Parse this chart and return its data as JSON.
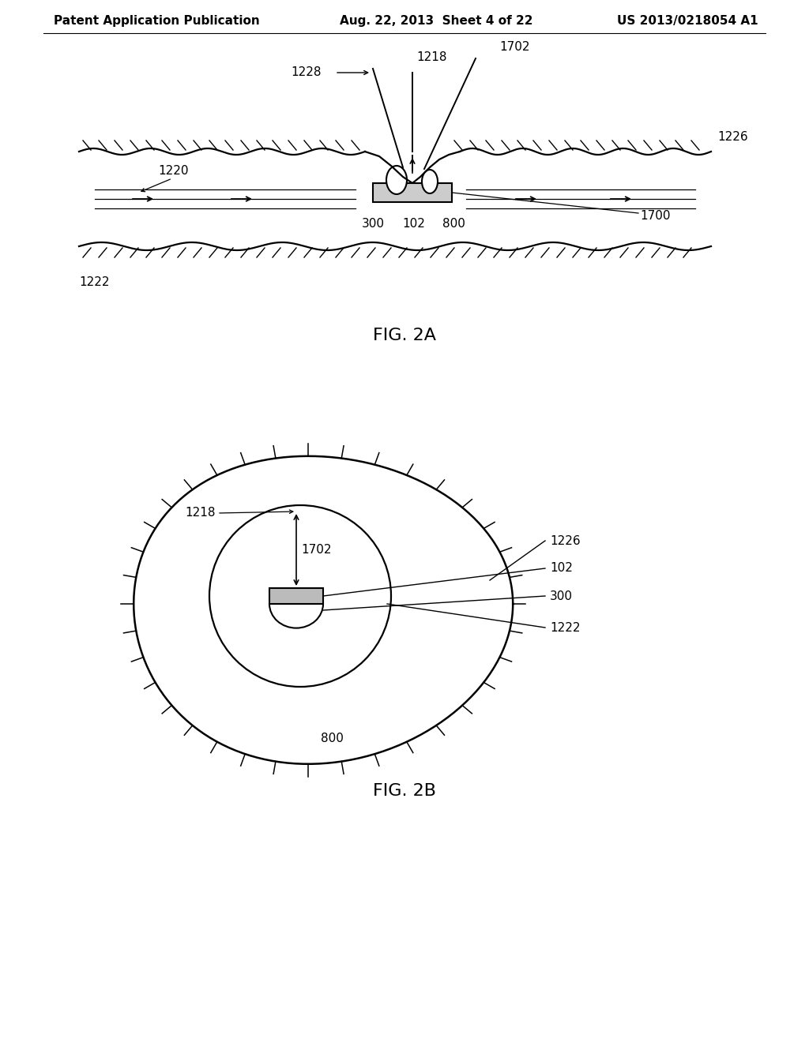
{
  "header_left": "Patent Application Publication",
  "header_mid": "Aug. 22, 2013  Sheet 4 of 22",
  "header_right": "US 2013/0218054 A1",
  "fig2a_label": "FIG. 2A",
  "fig2b_label": "FIG. 2B",
  "bg_color": "#ffffff",
  "line_color": "#000000",
  "header_fontsize": 11,
  "label_fontsize": 11,
  "figlabel_fontsize": 16
}
